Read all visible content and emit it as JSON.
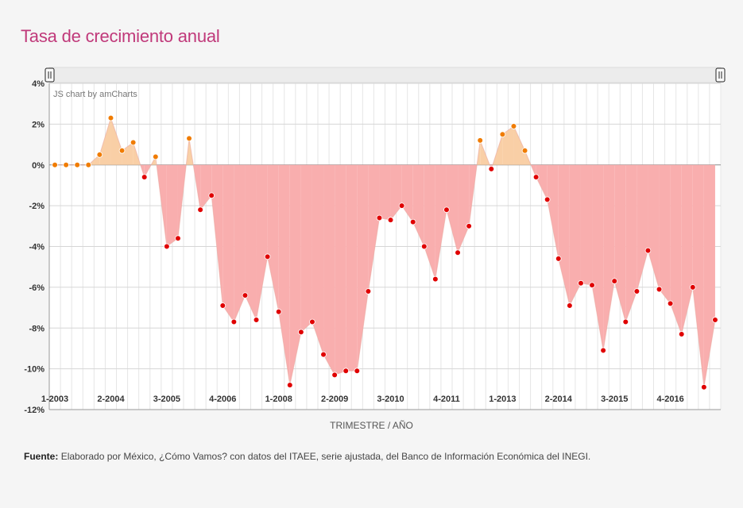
{
  "page": {
    "title": "Tasa de crecimiento anual",
    "credit": "JS chart by amCharts",
    "source_label": "Fuente:",
    "source_text": "Elaborado por México, ¿Cómo Vamos? con datos del ITAEE, serie ajustada, del Banco de Información Económica del INEGI."
  },
  "colors": {
    "positive_fill": "#f9cfa6",
    "negative_fill": "#f9aeae",
    "positive_point": "#f07c00",
    "negative_point": "#e00000",
    "title": "#c0397a"
  },
  "chart_data": {
    "type": "area",
    "title": "Tasa de crecimiento anual",
    "xlabel": "TRIMESTRE / AÑO",
    "ylabel": "",
    "ylim": [
      -12,
      4
    ],
    "y_ticks": [
      "4%",
      "2%",
      "0%",
      "-2%",
      "-4%",
      "-6%",
      "-8%",
      "-10%",
      "-12%"
    ],
    "x_tick_labels": [
      "1-2003",
      "2-2004",
      "3-2005",
      "4-2006",
      "1-2008",
      "2-2009",
      "3-2010",
      "4-2011",
      "1-2013",
      "2-2014",
      "3-2015",
      "4-2016"
    ],
    "label_every": 5,
    "grid": true,
    "scrollbar": true,
    "series": [
      {
        "values": [
          0,
          0,
          0,
          0,
          0.5,
          2.3,
          0.7,
          1.1,
          -0.6,
          0.4,
          -4.0,
          -3.6,
          1.3,
          -2.2,
          -1.5,
          -6.9,
          -7.7,
          -6.4,
          -7.6,
          -4.5,
          -7.2,
          -10.8,
          -8.2,
          -7.7,
          -9.3,
          -10.3,
          -10.1,
          -10.1,
          -6.2,
          -2.6,
          -2.7,
          -2.0,
          -2.8,
          -4.0,
          -5.6,
          -2.2,
          -4.3,
          -3.0,
          1.2,
          -0.2,
          1.5,
          1.9,
          0.7,
          -0.6,
          -1.7,
          -4.6,
          -6.9,
          -5.8,
          -5.9,
          -9.1,
          -5.7,
          -7.7,
          -6.2,
          -4.2,
          -6.1,
          -6.8,
          -8.3,
          -6.0,
          -10.9,
          -7.6
        ]
      }
    ]
  }
}
